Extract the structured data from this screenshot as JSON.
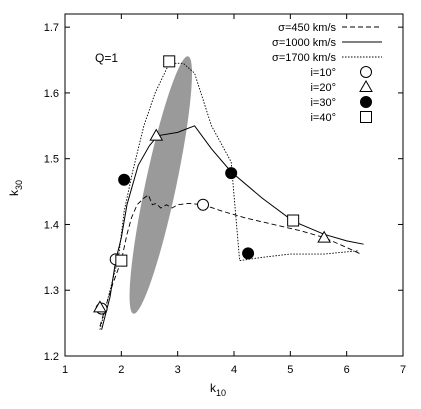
{
  "chart_data": {
    "type": "line",
    "xlabel": "k",
    "xlabel_sub": "10",
    "ylabel": "k",
    "ylabel_sub": "30",
    "xlim": [
      1,
      7
    ],
    "ylim": [
      1.2,
      1.72
    ],
    "xticks": [
      1,
      2,
      3,
      4,
      5,
      6,
      7
    ],
    "yticks": [
      1.2,
      1.3,
      1.4,
      1.5,
      1.6,
      1.7
    ],
    "annotation": "Q=1",
    "grid": false,
    "legend_position": "top-right",
    "shaded_ellipse": {
      "cx": 2.7,
      "cy": 1.46,
      "rx": 1.05,
      "ry": 0.2,
      "angle": 78,
      "color": "#9a9a9a"
    },
    "series": [
      {
        "name": "σ=450 km/s",
        "style": "dashed",
        "x": [
          1.62,
          1.72,
          1.85,
          2.0,
          2.1,
          2.18,
          2.28,
          2.4,
          2.48,
          2.55,
          2.62,
          2.7,
          2.8,
          2.9,
          3.0,
          3.2,
          3.45,
          3.8,
          4.2,
          4.7,
          5.2,
          5.6,
          6.0,
          6.25
        ],
        "y": [
          1.245,
          1.275,
          1.31,
          1.345,
          1.385,
          1.41,
          1.43,
          1.44,
          1.445,
          1.43,
          1.432,
          1.425,
          1.43,
          1.425,
          1.43,
          1.432,
          1.43,
          1.42,
          1.41,
          1.4,
          1.39,
          1.38,
          1.365,
          1.355
        ]
      },
      {
        "name": "σ=1000 km/s",
        "style": "solid",
        "x": [
          1.65,
          1.8,
          1.9,
          2.0,
          2.1,
          2.3,
          2.5,
          2.65,
          3.0,
          3.3,
          3.6,
          3.95,
          4.5,
          5.05,
          5.6,
          6.0,
          6.3
        ],
        "y": [
          1.24,
          1.29,
          1.345,
          1.38,
          1.43,
          1.49,
          1.52,
          1.535,
          1.54,
          1.55,
          1.515,
          1.48,
          1.44,
          1.405,
          1.385,
          1.375,
          1.37
        ]
      },
      {
        "name": "σ=1700 km/s",
        "style": "dotted",
        "x": [
          1.62,
          1.8,
          1.95,
          2.05,
          2.2,
          2.4,
          2.6,
          2.85,
          3.1,
          3.3,
          3.6,
          3.95,
          4.1,
          4.5,
          5.0,
          5.6,
          6.2
        ],
        "y": [
          1.24,
          1.3,
          1.35,
          1.42,
          1.48,
          1.55,
          1.6,
          1.645,
          1.645,
          1.63,
          1.55,
          1.495,
          1.345,
          1.35,
          1.355,
          1.355,
          1.36
        ]
      }
    ],
    "marker_legend": [
      {
        "name": "i=10°",
        "marker": "open-circle"
      },
      {
        "name": "i=20°",
        "marker": "open-triangle"
      },
      {
        "name": "i=30°",
        "marker": "filled-circle"
      },
      {
        "name": "i=40°",
        "marker": "open-square"
      }
    ],
    "markers": [
      {
        "marker": "open-circle",
        "x": 1.65,
        "y": 1.272
      },
      {
        "marker": "open-circle",
        "x": 1.9,
        "y": 1.347
      },
      {
        "marker": "open-circle",
        "x": 3.45,
        "y": 1.43
      },
      {
        "marker": "open-triangle",
        "x": 1.62,
        "y": 1.274
      },
      {
        "marker": "open-triangle",
        "x": 2.62,
        "y": 1.535
      },
      {
        "marker": "open-triangle",
        "x": 5.6,
        "y": 1.38
      },
      {
        "marker": "filled-circle",
        "x": 2.05,
        "y": 1.468
      },
      {
        "marker": "filled-circle",
        "x": 3.95,
        "y": 1.478
      },
      {
        "marker": "filled-circle",
        "x": 4.25,
        "y": 1.356
      },
      {
        "marker": "open-square",
        "x": 2.0,
        "y": 1.345
      },
      {
        "marker": "open-square",
        "x": 2.85,
        "y": 1.648
      },
      {
        "marker": "open-square",
        "x": 5.05,
        "y": 1.406
      }
    ]
  }
}
